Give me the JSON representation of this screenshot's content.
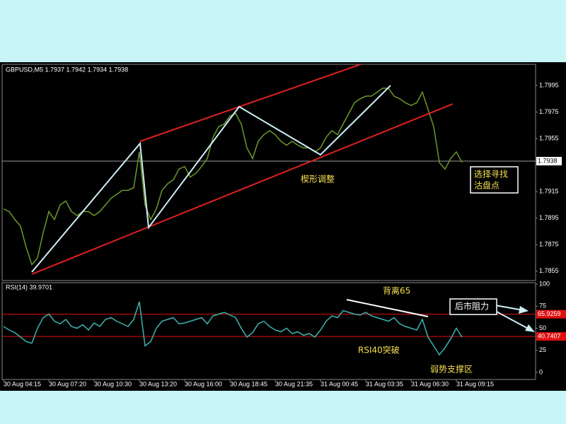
{
  "chart_data": [
    {
      "type": "line",
      "title": "GBPUSD,M5  1.7937 1.7942 1.7934 1.7938",
      "color": "#6b9a2a",
      "categories": [
        "30 Aug 04:15",
        null,
        null,
        null,
        null,
        null,
        null,
        null,
        "30 Aug 07:20",
        null,
        null,
        null,
        null,
        null,
        null,
        null,
        "30 Aug 10:30",
        null,
        null,
        null,
        null,
        null,
        null,
        null,
        "30 Aug 13:20",
        null,
        null,
        null,
        null,
        null,
        null,
        null,
        "30 Aug 16:00",
        null,
        null,
        null,
        null,
        null,
        null,
        null,
        "30 Aug 18:45",
        null,
        null,
        null,
        null,
        null,
        null,
        null,
        "30 Aug 21:35",
        null,
        null,
        null,
        null,
        null,
        null,
        null,
        "31 Aug 00:45",
        null,
        null,
        null,
        null,
        null,
        null,
        null,
        "31 Aug 03:35",
        null,
        null,
        null,
        null,
        null,
        null,
        null,
        "31 Aug 06:30",
        null,
        null,
        null,
        null,
        null,
        null,
        null,
        "31 Aug 09:15",
        null
      ],
      "values": [
        1.7902,
        1.79,
        1.7894,
        1.7889,
        1.7873,
        1.786,
        1.7865,
        1.7884,
        1.79,
        1.7894,
        1.7905,
        1.7908,
        1.79,
        1.7897,
        1.79,
        1.79,
        1.7897,
        1.79,
        1.7905,
        1.791,
        1.7913,
        1.7916,
        1.7916,
        1.7918,
        1.7945,
        1.7905,
        1.7894,
        1.7902,
        1.7916,
        1.7921,
        1.7924,
        1.7932,
        1.7934,
        1.7926,
        1.7929,
        1.7934,
        1.794,
        1.7956,
        1.7964,
        1.7966,
        1.7972,
        1.7974,
        1.7966,
        1.7948,
        1.794,
        1.7953,
        1.7958,
        1.7961,
        1.7958,
        1.7953,
        1.795,
        1.7953,
        1.795,
        1.7948,
        1.7948,
        1.7945,
        1.7948,
        1.7956,
        1.7961,
        1.7958,
        1.7966,
        1.7974,
        1.7982,
        1.7985,
        1.7987,
        1.7987,
        1.799,
        1.7993,
        1.7993,
        1.7987,
        1.7985,
        1.7982,
        1.798,
        1.7982,
        1.799,
        1.7977,
        1.7964,
        1.7937,
        1.7932,
        1.794,
        1.7945,
        1.7937
      ],
      "ylim": [
        1.7848,
        1.8011
      ],
      "yticks": [
        1.7995,
        1.7975,
        1.7955,
        1.7915,
        1.7895,
        1.7875,
        1.7855
      ],
      "last_price": 1.7938
    },
    {
      "type": "line",
      "title": "RSI(14)  39.9701",
      "color": "#3cb4b0",
      "values": [
        52,
        48,
        45,
        40,
        35,
        33,
        50,
        62,
        66,
        58,
        55,
        60,
        52,
        50,
        54,
        48,
        56,
        52,
        60,
        62,
        58,
        55,
        52,
        60,
        80,
        30,
        35,
        50,
        58,
        60,
        62,
        55,
        56,
        58,
        60,
        62,
        55,
        64,
        66,
        68,
        65,
        62,
        50,
        40,
        45,
        55,
        58,
        52,
        48,
        46,
        50,
        44,
        46,
        42,
        44,
        40,
        48,
        58,
        64,
        62,
        70,
        68,
        66,
        65,
        68,
        64,
        62,
        60,
        58,
        62,
        55,
        52,
        50,
        48,
        60,
        40,
        30,
        20,
        28,
        38,
        50,
        40
      ],
      "ylim": [
        -8,
        101.6
      ],
      "yticks": [
        100,
        75,
        50,
        25,
        0
      ],
      "levels": [
        65.9259,
        40.7407
      ],
      "level_color": "#e01010"
    }
  ],
  "annotations": {
    "wedge": "楔形调整",
    "sell_1": "选择寻找",
    "sell_2": "沽盘点",
    "divergence": "背离65",
    "breakout": "RSI40突破",
    "support": "弱势支撑区",
    "resistance": "后市阻力"
  }
}
